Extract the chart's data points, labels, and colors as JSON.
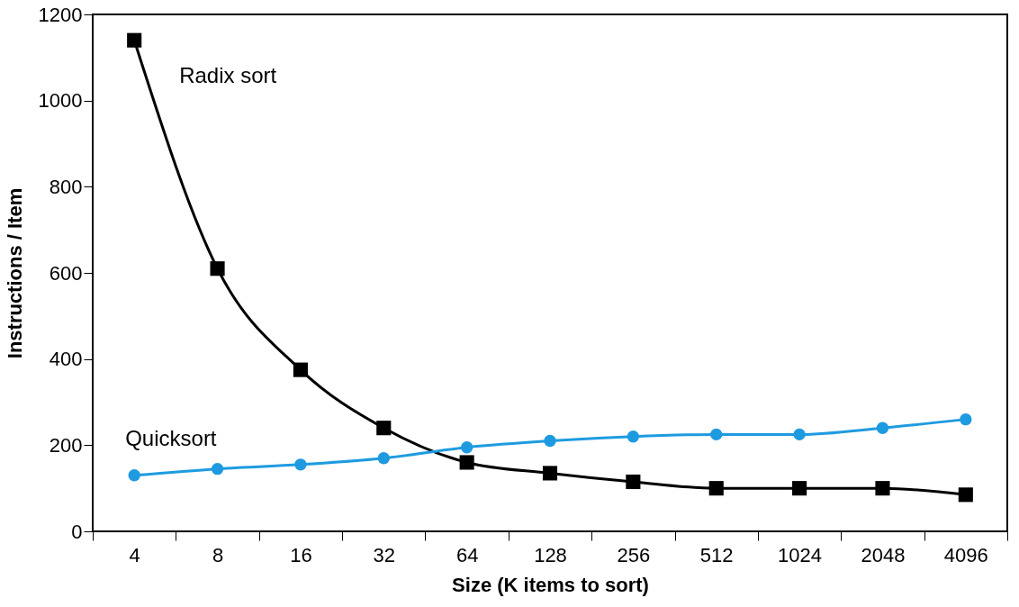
{
  "chart_data": {
    "type": "line",
    "xlabel": "Size (K items to sort)",
    "ylabel": "Instructions / Item",
    "categories": [
      "4",
      "8",
      "16",
      "32",
      "64",
      "128",
      "256",
      "512",
      "1024",
      "2048",
      "4096"
    ],
    "ylim": [
      0,
      1200
    ],
    "yticks": [
      0,
      200,
      400,
      600,
      800,
      1000,
      1200
    ],
    "grid": false,
    "series": [
      {
        "name": "Radix sort",
        "color": "#000000",
        "marker": "square",
        "values": [
          1140,
          610,
          375,
          240,
          160,
          135,
          115,
          100,
          100,
          100,
          85
        ]
      },
      {
        "name": "Quicksort",
        "color": "#1e9be0",
        "marker": "circle",
        "values": [
          130,
          145,
          155,
          170,
          195,
          210,
          220,
          225,
          225,
          240,
          260
        ]
      }
    ]
  }
}
